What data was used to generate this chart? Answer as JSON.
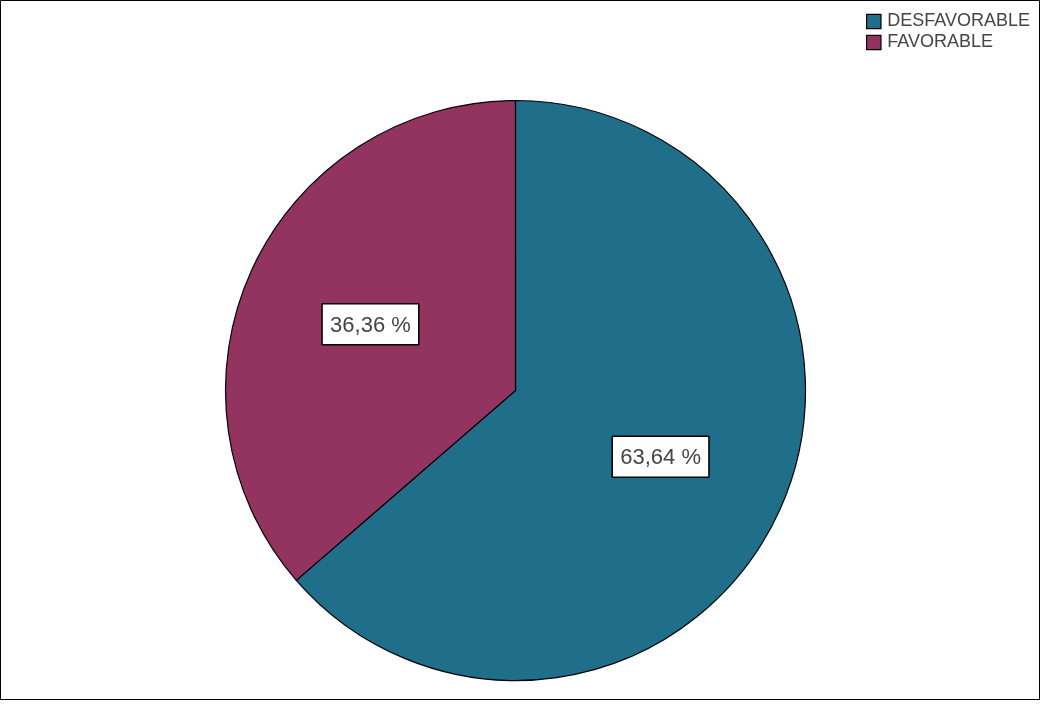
{
  "chart_data": {
    "type": "pie",
    "categories": [
      "DESFAVORABLE",
      "FAVORABLE"
    ],
    "values": [
      63.64,
      36.36
    ],
    "colors": [
      "#1f6e8a",
      "#933460"
    ],
    "value_labels": [
      "63,64 %",
      "36,36 %"
    ],
    "legend": "top right"
  }
}
